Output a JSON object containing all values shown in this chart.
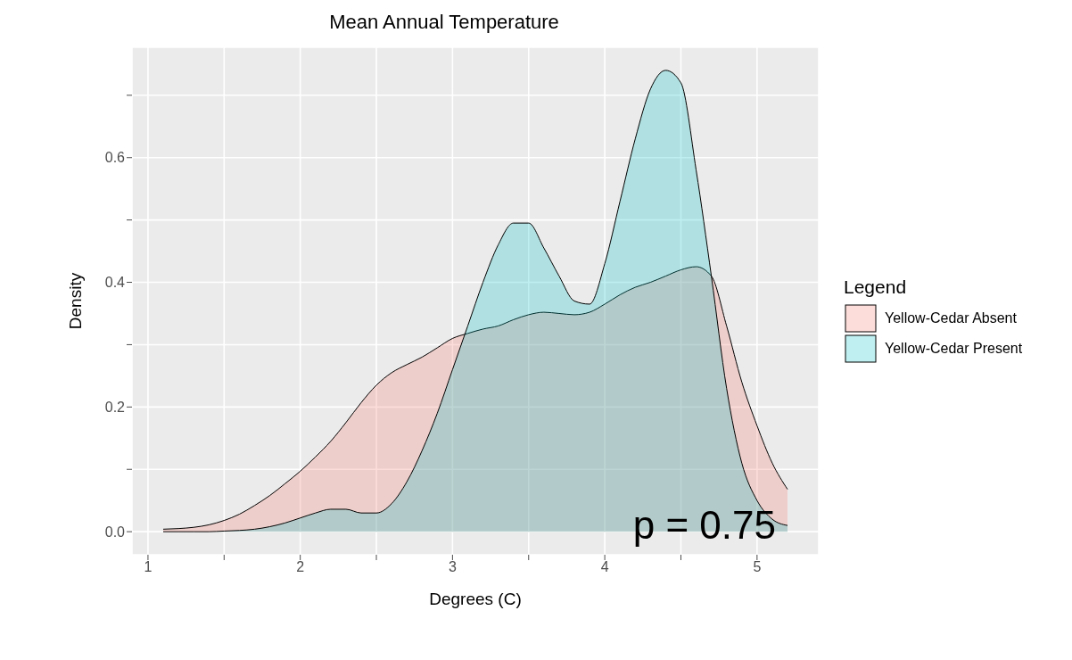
{
  "chart_data": {
    "type": "area",
    "title": "Mean Annual Temperature",
    "xlabel": "Degrees (C)",
    "ylabel": "Density",
    "legend_title": "Legend",
    "legend": "right",
    "grid": true,
    "x": [
      1.1,
      1.2,
      1.3,
      1.4,
      1.5,
      1.6,
      1.7,
      1.8,
      1.9,
      2.0,
      2.1,
      2.2,
      2.3,
      2.4,
      2.5,
      2.6,
      2.7,
      2.8,
      2.9,
      3.0,
      3.1,
      3.2,
      3.3,
      3.4,
      3.5,
      3.6,
      3.7,
      3.8,
      3.9,
      4.0,
      4.1,
      4.2,
      4.3,
      4.4,
      4.5,
      4.6,
      4.7,
      4.8,
      4.9,
      5.0,
      5.1,
      5.2
    ],
    "series": [
      {
        "name": "Yellow-Cedar Absent",
        "color": "#f8766d",
        "values": [
          0.004,
          0.005,
          0.007,
          0.011,
          0.018,
          0.028,
          0.042,
          0.058,
          0.077,
          0.097,
          0.12,
          0.145,
          0.175,
          0.207,
          0.235,
          0.255,
          0.268,
          0.28,
          0.295,
          0.31,
          0.318,
          0.325,
          0.33,
          0.34,
          0.348,
          0.352,
          0.35,
          0.348,
          0.352,
          0.365,
          0.38,
          0.392,
          0.4,
          0.41,
          0.42,
          0.425,
          0.41,
          0.33,
          0.24,
          0.17,
          0.11,
          0.068
        ]
      },
      {
        "name": "Yellow-Cedar Present",
        "color": "#00bfc4",
        "values": [
          0,
          0,
          0,
          0,
          0.001,
          0.002,
          0.004,
          0.008,
          0.014,
          0.022,
          0.03,
          0.036,
          0.036,
          0.03,
          0.03,
          0.045,
          0.08,
          0.13,
          0.19,
          0.26,
          0.33,
          0.4,
          0.46,
          0.495,
          0.495,
          0.455,
          0.41,
          0.37,
          0.365,
          0.43,
          0.53,
          0.63,
          0.71,
          0.74,
          0.72,
          0.58,
          0.41,
          0.23,
          0.11,
          0.05,
          0.02,
          0.01
        ]
      }
    ],
    "xlim": [
      0.895,
      5.405
    ],
    "xticks": [
      1,
      {
        "value": 1.5,
        "label": null
      },
      2,
      {
        "value": 2.5,
        "label": null
      },
      3,
      {
        "value": 3.5,
        "label": null
      },
      4,
      {
        "value": 4.5,
        "label": null
      },
      5
    ],
    "ylim": [
      -0.037,
      0.777
    ],
    "yticks": [
      {
        "value": 0,
        "label": "0.0"
      },
      {
        "value": 0.1,
        "label": null
      },
      {
        "value": 0.2,
        "label": "0.2"
      },
      {
        "value": 0.3,
        "label": null
      },
      {
        "value": 0.4,
        "label": "0.4"
      },
      {
        "value": 0.5,
        "label": null
      },
      {
        "value": 0.6,
        "label": "0.6"
      },
      {
        "value": 0.7,
        "label": null
      }
    ],
    "annotations": [
      "p = 0.75"
    ]
  }
}
